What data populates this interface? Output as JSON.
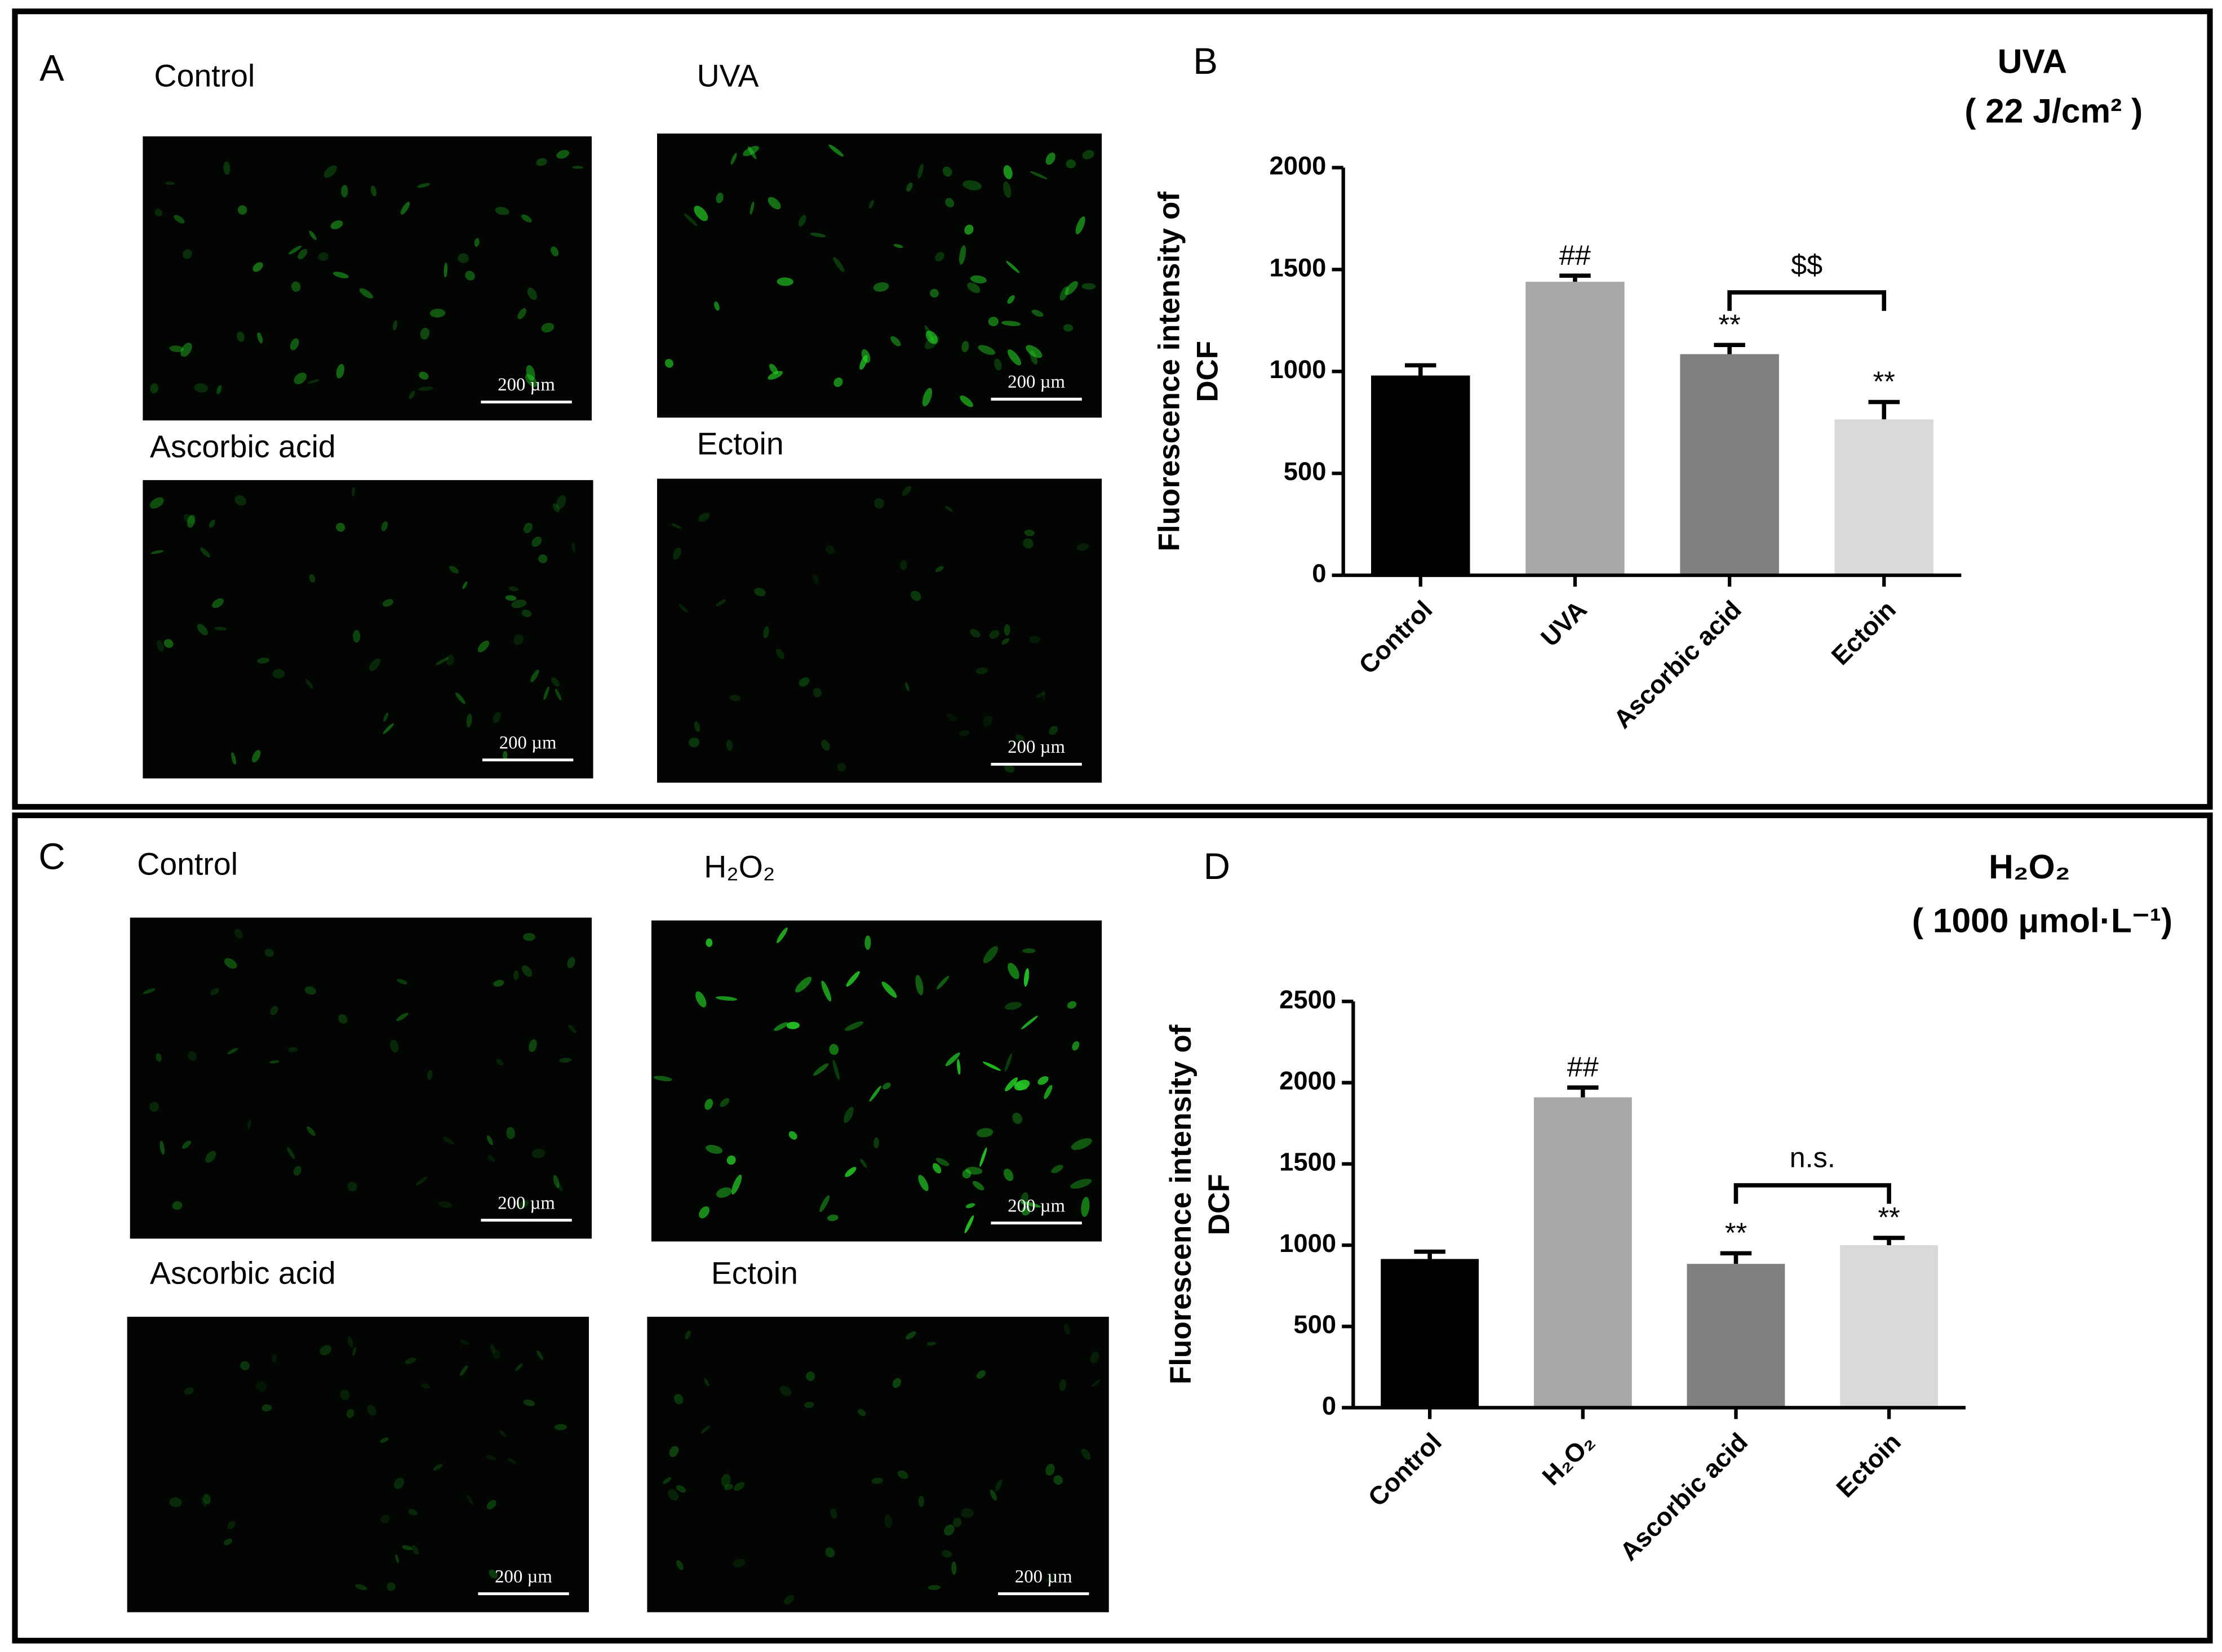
{
  "micrograph_panels": [
    {
      "letter": "A",
      "images": [
        {
          "label": "Control",
          "scale_bar": "200 µm"
        },
        {
          "label": "UVA",
          "scale_bar": "200 µm"
        },
        {
          "label": "Ascorbic acid",
          "scale_bar": "200 µm"
        },
        {
          "label": "Ectoin",
          "scale_bar": "200 µm"
        }
      ]
    },
    {
      "letter": "C",
      "images": [
        {
          "label": "Control",
          "scale_bar": "200 µm"
        },
        {
          "label": "H₂O₂",
          "scale_bar": "200 µm"
        },
        {
          "label": "Ascorbic acid",
          "scale_bar": "200 µm"
        },
        {
          "label": "Ectoin",
          "scale_bar": "200 µm"
        }
      ]
    }
  ],
  "chart_data": [
    {
      "type": "bar",
      "letter": "B",
      "title": "UVA",
      "subtitle": "( 22 J/cm² )",
      "ylabel": [
        "Fluorescence intensity of",
        "DCF"
      ],
      "categories": [
        "Control",
        "UVA",
        "Ascorbic acid",
        "Ectoin"
      ],
      "values": [
        980,
        1440,
        1085,
        765
      ],
      "errors": [
        50,
        30,
        45,
        85
      ],
      "colors": [
        "#000000",
        "#a7a7aa",
        "#808080",
        "#d9d9d9"
      ],
      "bar_labels": [
        null,
        "##",
        "**",
        "**"
      ],
      "bracket": {
        "categories": [
          "Ascorbic acid",
          "Ectoin"
        ],
        "label": "$$"
      },
      "ylim": [
        0,
        2000
      ],
      "yticks": [
        0,
        500,
        1000,
        1500,
        2000
      ]
    },
    {
      "type": "bar",
      "letter": "D",
      "title": "H₂O₂",
      "subtitle": "( 1000 μmol·L⁻¹)",
      "ylabel": [
        "Fluorescence intensity of",
        "DCF"
      ],
      "categories": [
        "Control",
        "H₂O₂",
        "Ascorbic acid",
        "Ectoin"
      ],
      "values": [
        915,
        1910,
        885,
        1000
      ],
      "errors": [
        45,
        60,
        65,
        45
      ],
      "colors": [
        "#000000",
        "#a7a7aa",
        "#808080",
        "#d9d9d9"
      ],
      "bar_labels": [
        null,
        "##",
        "**",
        "**"
      ],
      "bracket": {
        "categories": [
          "Ascorbic acid",
          "Ectoin"
        ],
        "label": "n.s."
      },
      "ylim": [
        0,
        2500
      ],
      "yticks": [
        0,
        500,
        1000,
        1500,
        2000,
        2500
      ]
    }
  ]
}
